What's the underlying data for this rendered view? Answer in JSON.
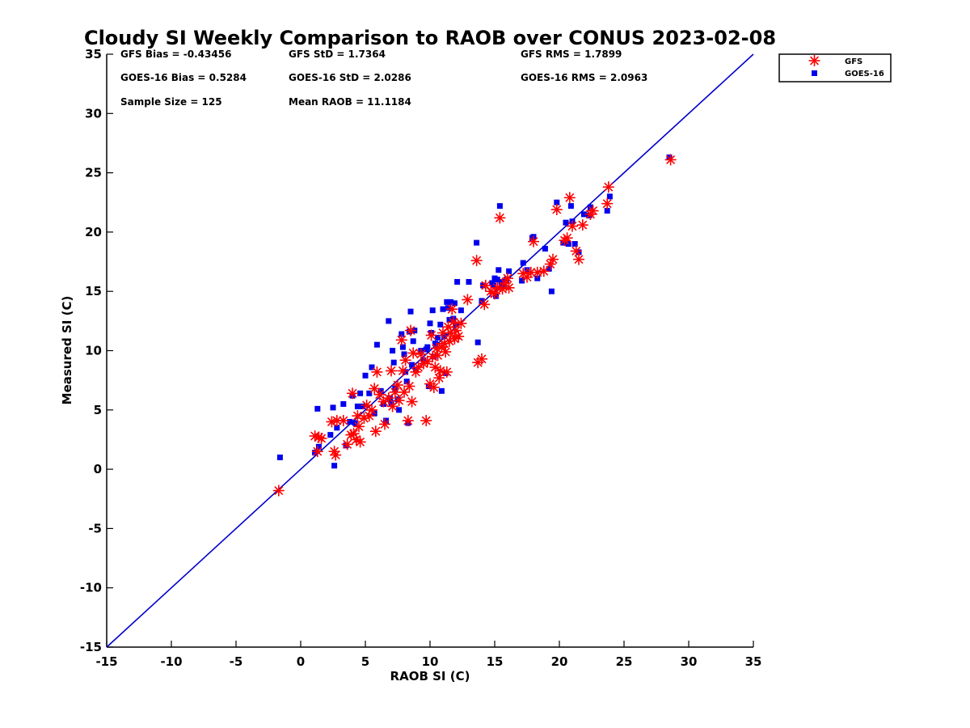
{
  "chart_data": {
    "type": "scatter",
    "title": "Cloudy SI Weekly Comparison to RAOB over CONUS 2023-02-08",
    "xlabel": "RAOB SI (C)",
    "ylabel": "Measured SI (C)",
    "xlim": [
      -15,
      35
    ],
    "ylim": [
      -15,
      35
    ],
    "xticks": [
      "-15",
      "-10",
      "-5",
      "0",
      "5",
      "10",
      "15",
      "20",
      "25",
      "30",
      "35"
    ],
    "yticks": [
      "-15",
      "-10",
      "-5",
      "0",
      "5",
      "10",
      "15",
      "20",
      "25",
      "30",
      "35"
    ],
    "grid": false,
    "legend_position": "outside top-right",
    "reference_line": {
      "from": [
        -15,
        -15
      ],
      "to": [
        35,
        35
      ],
      "color": "#0000cc"
    },
    "stats": [
      "GFS Bias = -0.43456",
      "GFS StD = 1.7364",
      "GFS RMS = 1.7899",
      "GOES-16 Bias = 0.5284",
      "GOES-16 StD = 2.0286",
      "GOES-16 RMS = 2.0963",
      "Sample Size = 125",
      "Mean RAOB = 11.1184"
    ],
    "series": [
      {
        "name": "GFS",
        "marker": "asterisk",
        "color": "#ff0000",
        "points": [
          [
            -1.7,
            -1.8
          ],
          [
            1.1,
            2.8
          ],
          [
            1.3,
            1.5
          ],
          [
            1.4,
            2.7
          ],
          [
            1.6,
            2.6
          ],
          [
            2.4,
            4.0
          ],
          [
            2.6,
            1.5
          ],
          [
            2.7,
            1.2
          ],
          [
            2.8,
            4.1
          ],
          [
            3.3,
            4.1
          ],
          [
            3.6,
            2.1
          ],
          [
            3.9,
            2.9
          ],
          [
            4.0,
            6.4
          ],
          [
            4.1,
            3.0
          ],
          [
            4.3,
            2.5
          ],
          [
            4.4,
            4.5
          ],
          [
            4.5,
            3.6
          ],
          [
            4.6,
            2.3
          ],
          [
            4.9,
            4.3
          ],
          [
            5.1,
            5.4
          ],
          [
            5.3,
            4.5
          ],
          [
            5.5,
            5.0
          ],
          [
            5.7,
            6.8
          ],
          [
            5.8,
            3.2
          ],
          [
            5.9,
            8.2
          ],
          [
            6.1,
            6.3
          ],
          [
            6.4,
            5.7
          ],
          [
            6.5,
            3.8
          ],
          [
            6.8,
            6.0
          ],
          [
            7.0,
            8.3
          ],
          [
            7.1,
            5.3
          ],
          [
            7.3,
            6.5
          ],
          [
            7.5,
            7.1
          ],
          [
            7.6,
            5.8
          ],
          [
            7.8,
            10.9
          ],
          [
            7.9,
            8.3
          ],
          [
            8.0,
            6.5
          ],
          [
            8.1,
            9.2
          ],
          [
            8.3,
            4.1
          ],
          [
            8.4,
            7.0
          ],
          [
            8.5,
            11.7
          ],
          [
            8.6,
            5.7
          ],
          [
            8.7,
            9.8
          ],
          [
            8.9,
            8.2
          ],
          [
            9.1,
            8.6
          ],
          [
            9.3,
            9.7
          ],
          [
            9.5,
            8.9
          ],
          [
            9.7,
            4.1
          ],
          [
            9.8,
            9.1
          ],
          [
            10.0,
            7.2
          ],
          [
            10.1,
            11.3
          ],
          [
            10.2,
            9.5
          ],
          [
            10.3,
            6.9
          ],
          [
            10.4,
            8.6
          ],
          [
            10.5,
            10.2
          ],
          [
            10.6,
            9.6
          ],
          [
            10.7,
            7.7
          ],
          [
            10.8,
            8.3
          ],
          [
            10.9,
            10.3
          ],
          [
            11.0,
            11.5
          ],
          [
            11.1,
            10.6
          ],
          [
            11.2,
            9.9
          ],
          [
            11.3,
            8.2
          ],
          [
            11.4,
            12.0
          ],
          [
            11.5,
            10.8
          ],
          [
            11.6,
            11.5
          ],
          [
            11.7,
            13.5
          ],
          [
            11.8,
            12.4
          ],
          [
            11.9,
            11.0
          ],
          [
            12.0,
            11.7
          ],
          [
            12.2,
            11.2
          ],
          [
            12.4,
            12.3
          ],
          [
            12.9,
            14.3
          ],
          [
            13.6,
            17.6
          ],
          [
            13.7,
            9.0
          ],
          [
            14.0,
            9.3
          ],
          [
            14.2,
            13.9
          ],
          [
            14.3,
            15.5
          ],
          [
            14.7,
            15.0
          ],
          [
            15.0,
            14.8
          ],
          [
            15.2,
            15.3
          ],
          [
            15.4,
            21.2
          ],
          [
            15.6,
            15.2
          ],
          [
            15.8,
            15.7
          ],
          [
            16.0,
            16.1
          ],
          [
            16.1,
            15.3
          ],
          [
            17.2,
            16.5
          ],
          [
            17.5,
            16.2
          ],
          [
            17.8,
            16.6
          ],
          [
            18.0,
            19.2
          ],
          [
            18.3,
            16.6
          ],
          [
            18.8,
            16.7
          ],
          [
            19.3,
            17.3
          ],
          [
            19.5,
            17.7
          ],
          [
            19.8,
            21.9
          ],
          [
            20.4,
            19.3
          ],
          [
            20.6,
            19.5
          ],
          [
            20.8,
            22.9
          ],
          [
            21.0,
            20.5
          ],
          [
            21.3,
            18.4
          ],
          [
            21.5,
            17.7
          ],
          [
            21.8,
            20.6
          ],
          [
            22.4,
            21.5
          ],
          [
            22.6,
            21.8
          ],
          [
            23.7,
            22.4
          ],
          [
            23.8,
            23.8
          ],
          [
            28.6,
            26.1
          ]
        ]
      },
      {
        "name": "GOES-16",
        "marker": "square",
        "color": "#0000ee",
        "points": [
          [
            -1.6,
            1.0
          ],
          [
            1.1,
            1.4
          ],
          [
            1.3,
            5.1
          ],
          [
            1.4,
            1.9
          ],
          [
            2.3,
            2.9
          ],
          [
            2.5,
            5.2
          ],
          [
            2.6,
            0.3
          ],
          [
            2.8,
            3.5
          ],
          [
            3.3,
            5.5
          ],
          [
            3.5,
            2.0
          ],
          [
            3.8,
            4.0
          ],
          [
            4.0,
            6.2
          ],
          [
            4.2,
            3.9
          ],
          [
            4.4,
            5.3
          ],
          [
            4.6,
            6.4
          ],
          [
            4.8,
            5.3
          ],
          [
            5.0,
            7.9
          ],
          [
            5.3,
            6.4
          ],
          [
            5.5,
            8.6
          ],
          [
            5.7,
            4.7
          ],
          [
            5.9,
            10.5
          ],
          [
            6.2,
            6.6
          ],
          [
            6.4,
            5.5
          ],
          [
            6.6,
            4.1
          ],
          [
            6.8,
            12.5
          ],
          [
            6.9,
            6.0
          ],
          [
            7.0,
            5.6
          ],
          [
            7.1,
            10.0
          ],
          [
            7.2,
            9.0
          ],
          [
            7.3,
            6.8
          ],
          [
            7.5,
            5.9
          ],
          [
            7.6,
            5.0
          ],
          [
            7.8,
            11.4
          ],
          [
            7.9,
            10.3
          ],
          [
            8.0,
            9.7
          ],
          [
            8.1,
            8.2
          ],
          [
            8.2,
            7.4
          ],
          [
            8.3,
            3.9
          ],
          [
            8.4,
            11.6
          ],
          [
            8.5,
            13.3
          ],
          [
            8.6,
            8.8
          ],
          [
            8.7,
            10.8
          ],
          [
            8.8,
            11.7
          ],
          [
            8.9,
            8.4
          ],
          [
            9.3,
            10.0
          ],
          [
            9.5,
            9.2
          ],
          [
            9.7,
            10.1
          ],
          [
            9.8,
            10.3
          ],
          [
            9.9,
            7.0
          ],
          [
            10.0,
            12.3
          ],
          [
            10.1,
            11.5
          ],
          [
            10.2,
            13.4
          ],
          [
            10.3,
            9.5
          ],
          [
            10.4,
            10.6
          ],
          [
            10.6,
            11.1
          ],
          [
            10.8,
            12.2
          ],
          [
            10.9,
            6.6
          ],
          [
            11.0,
            13.5
          ],
          [
            11.1,
            11.2
          ],
          [
            11.2,
            8.1
          ],
          [
            11.3,
            14.1
          ],
          [
            11.4,
            13.6
          ],
          [
            11.5,
            12.6
          ],
          [
            11.6,
            14.1
          ],
          [
            11.8,
            12.7
          ],
          [
            11.9,
            14.0
          ],
          [
            12.0,
            12.2
          ],
          [
            12.1,
            15.8
          ],
          [
            12.4,
            13.4
          ],
          [
            13.0,
            15.8
          ],
          [
            13.6,
            19.1
          ],
          [
            13.7,
            10.7
          ],
          [
            14.0,
            14.2
          ],
          [
            14.1,
            15.5
          ],
          [
            14.8,
            15.7
          ],
          [
            14.9,
            15.5
          ],
          [
            15.0,
            16.1
          ],
          [
            15.1,
            14.6
          ],
          [
            15.2,
            16.0
          ],
          [
            15.3,
            16.8
          ],
          [
            15.4,
            22.2
          ],
          [
            15.5,
            15.8
          ],
          [
            15.7,
            15.5
          ],
          [
            15.9,
            16.0
          ],
          [
            16.1,
            16.7
          ],
          [
            17.1,
            15.9
          ],
          [
            17.2,
            17.4
          ],
          [
            17.5,
            16.8
          ],
          [
            17.9,
            19.5
          ],
          [
            18.0,
            19.6
          ],
          [
            18.3,
            16.1
          ],
          [
            18.9,
            18.6
          ],
          [
            19.2,
            16.9
          ],
          [
            19.4,
            15.0
          ],
          [
            19.8,
            22.5
          ],
          [
            20.3,
            19.1
          ],
          [
            20.5,
            20.8
          ],
          [
            20.7,
            19.0
          ],
          [
            20.9,
            22.2
          ],
          [
            21.0,
            20.9
          ],
          [
            21.2,
            19.0
          ],
          [
            21.5,
            18.3
          ],
          [
            21.9,
            21.5
          ],
          [
            22.3,
            21.4
          ],
          [
            22.4,
            22.1
          ],
          [
            23.7,
            21.8
          ],
          [
            23.9,
            23.0
          ],
          [
            28.5,
            26.3
          ]
        ]
      }
    ]
  }
}
